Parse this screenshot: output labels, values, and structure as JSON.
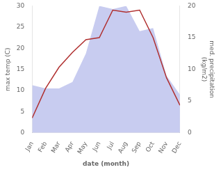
{
  "chart_data": {
    "type": "line",
    "categories": [
      "Jan",
      "Feb",
      "Mar",
      "Apr",
      "May",
      "Jun",
      "Jul",
      "Aug",
      "Sep",
      "Oct",
      "Nov",
      "Dec"
    ],
    "series": [
      {
        "type": "area",
        "color": "#c8ccf0",
        "axis": "y2",
        "values": [
          7.5,
          7.0,
          7.0,
          8.0,
          12.5,
          20.0,
          19.5,
          20.0,
          16.0,
          16.5,
          9.0,
          6.0
        ]
      },
      {
        "type": "line",
        "color": "#b03030",
        "values": [
          3.5,
          10.5,
          15.5,
          19.0,
          22.0,
          22.5,
          29.0,
          28.5,
          29.0,
          22.5,
          13.0,
          6.5
        ]
      }
    ],
    "xlabel": "date (month)",
    "ylabel": "max temp (C)",
    "y2label": "med. precipitation\n(kg/m2)",
    "ylim": [
      0,
      30
    ],
    "yticks": [
      0,
      5,
      10,
      15,
      20,
      25,
      30
    ],
    "y2lim": [
      0,
      20
    ],
    "y2ticks": [
      0,
      5,
      10,
      15,
      20
    ],
    "grid": false
  }
}
